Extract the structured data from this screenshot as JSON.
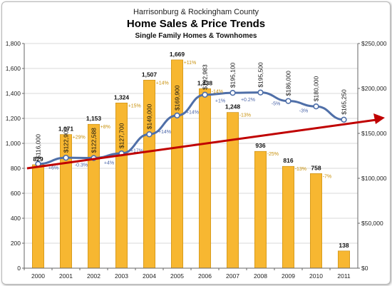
{
  "chart_data": {
    "type": "bar",
    "title": "Home Sales & Price Trends",
    "supertitle": "Harrisonburg & Rockingham County",
    "subtitle": "Single Family Homes & Townhomes",
    "categories": [
      "2000",
      "2001",
      "2002",
      "2003",
      "2004",
      "2005",
      "2006",
      "2007",
      "2008",
      "2009",
      "2010",
      "2011"
    ],
    "bar_values": [
      829,
      1071,
      1153,
      1324,
      1507,
      1669,
      1438,
      1248,
      936,
      816,
      758,
      138
    ],
    "bar_value_labels": [
      "829",
      "1,071",
      "1,153",
      "1,324",
      "1,507",
      "1,669",
      "1,438",
      "1,248",
      "936",
      "816",
      "758",
      "138"
    ],
    "bar_change_labels": [
      "",
      "+29%",
      "+8%",
      "+15%",
      "+14%",
      "+11%",
      "-14%",
      "-13%",
      "-25%",
      "-13%",
      "-7%",
      ""
    ],
    "price_values": [
      116000,
      122900,
      122588,
      127700,
      149000,
      169900,
      192983,
      195100,
      195500,
      186000,
      180000,
      165250
    ],
    "price_labels": [
      "$116,000",
      "$122,900",
      "$122,588",
      "$127,700",
      "$149,000",
      "$169,900",
      "$192,983",
      "$195,100",
      "$195,500",
      "$186,000",
      "$180,000",
      "$165,250"
    ],
    "price_change_labels": [
      "",
      "+6%",
      "-0.3%",
      "+4%",
      "+17%",
      "+14%",
      "+14%",
      "+1%",
      "+0.2%",
      "-5%",
      "-3%",
      ""
    ],
    "y_left_ticks": [
      "0",
      "200",
      "400",
      "600",
      "800",
      "1,000",
      "1,200",
      "1,400",
      "1,600",
      "1,800"
    ],
    "y_left_range": [
      0,
      1800
    ],
    "y_right_ticks": [
      "$0",
      "$50,000",
      "$100,000",
      "$150,000",
      "$200,000",
      "$250,000"
    ],
    "y_right_range": [
      0,
      250000
    ],
    "trend_arrow": {
      "start": {
        "x": "2000",
        "y": 800
      },
      "end_direction": "up-right"
    },
    "colors": {
      "bar": "#f7b731",
      "bar_border": "#c58a0f",
      "price_line": "#4f6fa8",
      "marker_fill": "#ffffff",
      "arrow": "#c00000",
      "grid": "#d9d9d9"
    },
    "grid": true,
    "legend": "none"
  }
}
